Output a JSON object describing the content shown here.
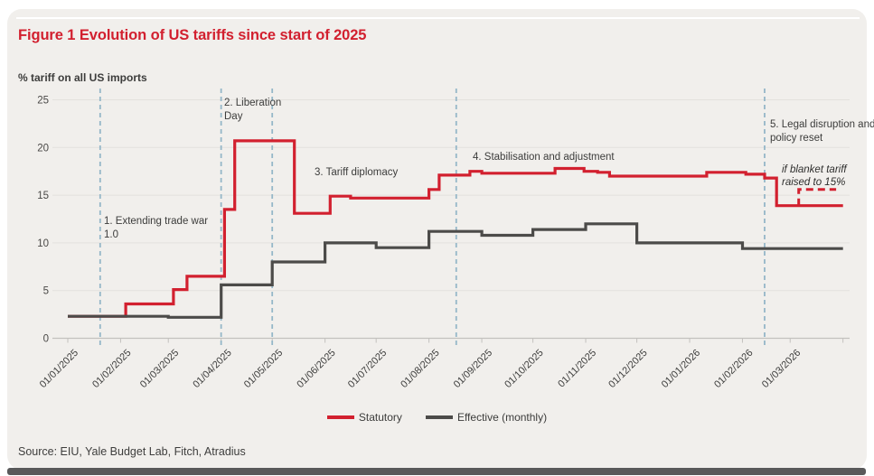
{
  "card": {
    "title": "Figure 1 Evolution of US tariffs since start of 2025",
    "axis_title": "% tariff on all US imports",
    "source": "Source: EIU, Yale Budget Lab, Fitch, Atradius"
  },
  "colors": {
    "accent_red": "#d2202f",
    "dark_gray": "#4c4b49",
    "phase_divider_blue": "#95b7c8",
    "card_background": "#f1efec"
  },
  "chart_data": {
    "type": "line",
    "title": "Figure 1 Evolution of US tariffs since start of 2025",
    "ylabel": "% tariff on all US imports",
    "ylim": [
      0,
      25
    ],
    "yticks": [
      0,
      5,
      10,
      15,
      20,
      25
    ],
    "grid": "horizontal",
    "legend_position": "bottom-center",
    "x_ticks": [
      {
        "date": "2025-01-01",
        "label": "01/01/2025"
      },
      {
        "date": "2025-02-01",
        "label": "01/02/2025"
      },
      {
        "date": "2025-03-01",
        "label": "01/03/2025"
      },
      {
        "date": "2025-04-01",
        "label": "01/04/2025"
      },
      {
        "date": "2025-05-01",
        "label": "01/05/2025"
      },
      {
        "date": "2025-06-01",
        "label": "01/06/2025"
      },
      {
        "date": "2025-07-01",
        "label": "01/07/2025"
      },
      {
        "date": "2025-08-01",
        "label": "01/08/2025"
      },
      {
        "date": "2025-09-01",
        "label": "01/09/2025"
      },
      {
        "date": "2025-10-01",
        "label": "01/10/2025"
      },
      {
        "date": "2025-11-01",
        "label": "01/11/2025"
      },
      {
        "date": "2025-12-01",
        "label": "01/12/2025"
      },
      {
        "date": "2026-01-01",
        "label": "01/01/2026"
      },
      {
        "date": "2026-02-01",
        "label": "01/02/2026"
      },
      {
        "date": "2026-03-01",
        "label": "01/03/2026"
      },
      {
        "date": "2026-04-01",
        "label": ""
      }
    ],
    "series": [
      {
        "name": "Statutory",
        "color": "#d2202f",
        "style": "solid",
        "step": true,
        "points": [
          [
            "2025-01-01",
            2.3
          ],
          [
            "2025-02-04",
            3.6
          ],
          [
            "2025-03-04",
            5.1
          ],
          [
            "2025-03-12",
            6.5
          ],
          [
            "2025-04-03",
            13.5
          ],
          [
            "2025-04-09",
            20.7
          ],
          [
            "2025-05-14",
            13.1
          ],
          [
            "2025-06-04",
            14.9
          ],
          [
            "2025-06-16",
            14.7
          ],
          [
            "2025-08-01",
            15.6
          ],
          [
            "2025-08-07",
            17.1
          ],
          [
            "2025-08-25",
            17.5
          ],
          [
            "2025-09-01",
            17.3
          ],
          [
            "2025-10-14",
            17.8
          ],
          [
            "2025-10-31",
            17.5
          ],
          [
            "2025-11-08",
            17.4
          ],
          [
            "2025-11-15",
            17.0
          ],
          [
            "2026-01-11",
            17.4
          ],
          [
            "2026-02-03",
            17.2
          ],
          [
            "2026-02-14",
            16.8
          ],
          [
            "2026-02-21",
            13.9
          ]
        ],
        "end": "2026-04-01"
      },
      {
        "name": "Effective (monthly)",
        "color": "#4c4b49",
        "style": "solid",
        "step": true,
        "points": [
          [
            "2025-01-01",
            2.3
          ],
          [
            "2025-03-01",
            2.2
          ],
          [
            "2025-04-01",
            5.6
          ],
          [
            "2025-05-01",
            8.0
          ],
          [
            "2025-06-01",
            10.0
          ],
          [
            "2025-07-01",
            9.5
          ],
          [
            "2025-08-01",
            11.2
          ],
          [
            "2025-09-01",
            10.8
          ],
          [
            "2025-10-01",
            11.4
          ],
          [
            "2025-11-01",
            12.0
          ],
          [
            "2025-12-01",
            10.0
          ],
          [
            "2026-02-01",
            9.4
          ]
        ],
        "end": "2026-04-01"
      },
      {
        "name": "Scenario: blanket tariff raised to 15%",
        "color": "#d2202f",
        "style": "dashed",
        "step": true,
        "points": [
          [
            "2026-03-06",
            13.9
          ],
          [
            "2026-03-06",
            15.6
          ],
          [
            "2026-03-28",
            15.6
          ]
        ]
      }
    ],
    "phases": [
      {
        "date": "2025-01-20",
        "label": "1. Extending trade war 1.0"
      },
      {
        "date": "2025-04-01",
        "label": "2. Liberation Day"
      },
      {
        "date": "2025-05-01",
        "label": "3. Tariff diplomacy"
      },
      {
        "date": "2025-08-17",
        "label": "4. Stabilisation and adjustment"
      },
      {
        "date": "2026-02-14",
        "label": "5. Legal disruption and policy reset"
      }
    ],
    "annotations": [
      {
        "text": "if blanket tariff raised to 15%"
      }
    ]
  },
  "legend": {
    "items": [
      "Statutory",
      "Effective (monthly)"
    ]
  }
}
